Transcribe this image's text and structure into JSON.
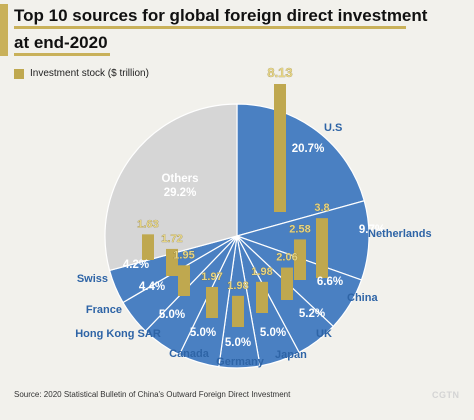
{
  "title": {
    "line1": "Top 10 sources for global foreign direct investment",
    "line2": "at end-2020"
  },
  "legend_label": "Investment stock ($ trillion)",
  "source": "Source: 2020 Statistical Bulletin of China's Outward Foreign Direct Investment",
  "logo": "CGTN",
  "colors": {
    "slice": "#4a80c2",
    "others_slice": "#d6d6d6",
    "bar": "#bfa84f",
    "bar_label": "#e5d486",
    "text_dark": "#222222",
    "text_blue": "#2e64a6",
    "accent": "#c9b15a"
  },
  "chart_data": {
    "type": "pie",
    "unit_bar": "$ trillion",
    "unit_slice": "%",
    "slices": [
      {
        "name": "U.S",
        "share": 20.7,
        "share_label": "20.7%",
        "value": 8.13,
        "value_label": "8.13"
      },
      {
        "name": "Netherlands",
        "share": 9.7,
        "share_label": "9.7%",
        "value": 3.8,
        "value_label": "3.8"
      },
      {
        "name": "China",
        "share": 6.6,
        "share_label": "6.6%",
        "value": 2.58,
        "value_label": "2.58"
      },
      {
        "name": "UK",
        "share": 5.2,
        "share_label": "5.2%",
        "value": 2.06,
        "value_label": "2.06"
      },
      {
        "name": "Japan",
        "share": 5.0,
        "share_label": "5.0%",
        "value": 1.98,
        "value_label": "1.98"
      },
      {
        "name": "Germany",
        "share": 5.0,
        "share_label": "5.0%",
        "value": 1.98,
        "value_label": "1.98"
      },
      {
        "name": "Canada",
        "share": 5.0,
        "share_label": "5.0%",
        "value": 1.97,
        "value_label": "1.97"
      },
      {
        "name": "Hong Kong SAR",
        "share": 5.0,
        "share_label": "5.0%",
        "value": 1.95,
        "value_label": "1.95"
      },
      {
        "name": "France",
        "share": 4.4,
        "share_label": "4.4%",
        "value": 1.72,
        "value_label": "1.72"
      },
      {
        "name": "Swiss",
        "share": 4.2,
        "share_label": "4.2%",
        "value": 1.63,
        "value_label": "1.63"
      }
    ],
    "others": {
      "name": "Others",
      "share": 29.2,
      "share_label": "29.2%"
    }
  }
}
